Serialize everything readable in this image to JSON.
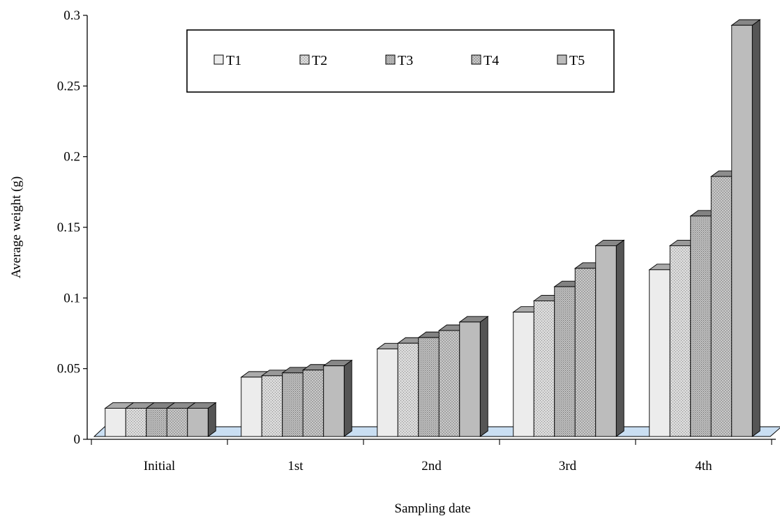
{
  "chart_data": {
    "type": "bar",
    "title": "",
    "xlabel": "Sampling date",
    "ylabel": "Average weight (g)",
    "categories": [
      "Initial",
      "1st",
      "2nd",
      "3rd",
      "4th"
    ],
    "series": [
      {
        "name": "T1",
        "values": [
          0.02,
          0.042,
          0.062,
          0.088,
          0.118
        ]
      },
      {
        "name": "T2",
        "values": [
          0.02,
          0.043,
          0.066,
          0.096,
          0.135
        ]
      },
      {
        "name": "T3",
        "values": [
          0.02,
          0.045,
          0.07,
          0.106,
          0.156
        ]
      },
      {
        "name": "T4",
        "values": [
          0.02,
          0.047,
          0.075,
          0.119,
          0.184
        ]
      },
      {
        "name": "T5",
        "values": [
          0.02,
          0.05,
          0.081,
          0.135,
          0.291
        ]
      }
    ],
    "ylim": [
      0,
      0.3
    ],
    "yticks": [
      "0",
      "0.05",
      "0.1",
      "0.15",
      "0.2",
      "0.25",
      "0.3"
    ],
    "grid": false,
    "legend_position": "top, inside plot",
    "style": "3d-column",
    "colors": {
      "T1": "#ececec",
      "T2": "#d4d4d4",
      "T3": "#b5b5b5",
      "T4": "#c4c4c4",
      "T5": "#bcbcbc",
      "floor": "#c9def2"
    },
    "patterns": {
      "T1": "solid",
      "T2": "fine-dots",
      "T3": "dense-dots",
      "T4": "crosshatch",
      "T5": "solid"
    }
  }
}
